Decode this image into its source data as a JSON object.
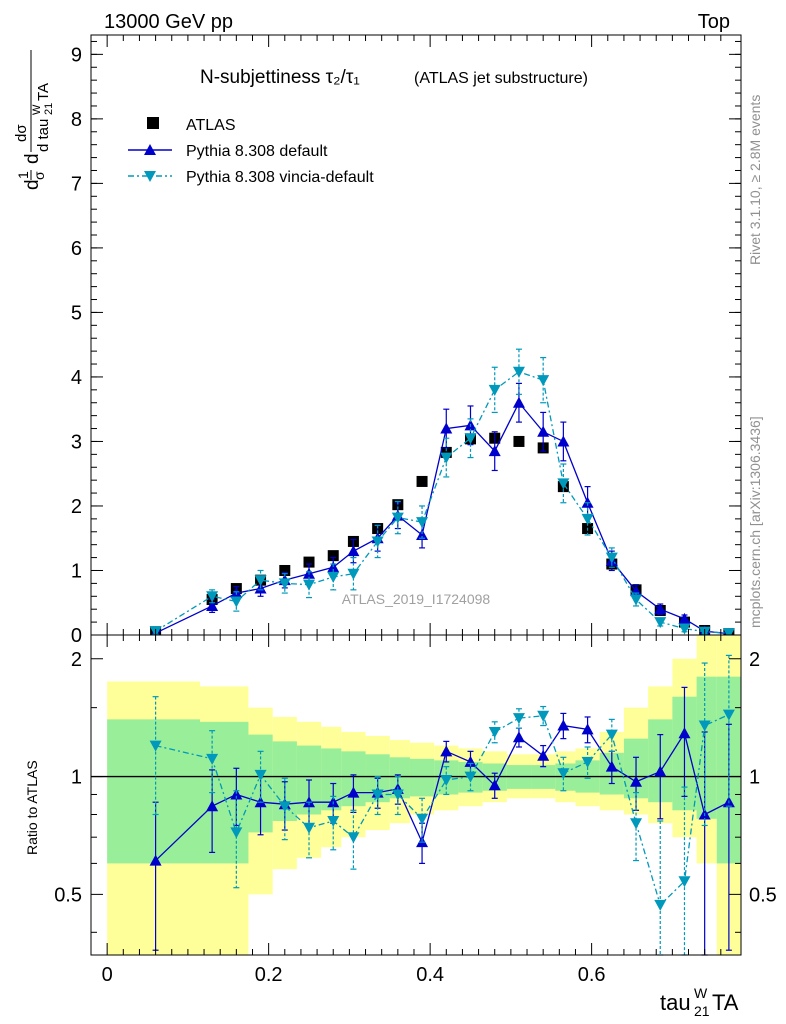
{
  "header": {
    "beam": "13000 GeV pp",
    "process": "Top",
    "analysis_id": "ATLAS_2019_I1724098"
  },
  "side_labels": {
    "rivet": "Rivet 3.1.10, ≥ 2.8M events",
    "mcplots": "mcplots.cern.ch [arXiv:1306.3436]"
  },
  "chart_data": [
    {
      "type": "scatter",
      "title_main": "N-subjettiness τ₂/τ₁",
      "title_sub": "(ATLAS jet substructure)",
      "xlabel": "tau21WTA",
      "ylabel": "(1/σ) dσ / d tau21WTA",
      "xlim": [
        -0.02,
        0.785
      ],
      "ylim": [
        0,
        9.3
      ],
      "yticks": [
        0,
        1,
        2,
        3,
        4,
        5,
        6,
        7,
        8,
        9
      ],
      "legend_position": "top-left",
      "series": [
        {
          "name": "ATLAS",
          "color": "#000000",
          "marker": "square",
          "x": [
            0.06,
            0.13,
            0.16,
            0.19,
            0.22,
            0.25,
            0.28,
            0.305,
            0.335,
            0.36,
            0.39,
            0.42,
            0.45,
            0.48,
            0.51,
            0.54,
            0.565,
            0.595,
            0.625,
            0.655,
            0.685,
            0.715,
            0.74,
            0.77
          ],
          "y": [
            0.05,
            0.55,
            0.72,
            0.85,
            1.0,
            1.13,
            1.23,
            1.45,
            1.65,
            2.02,
            2.38,
            2.83,
            3.04,
            3.05,
            3.0,
            2.9,
            2.3,
            1.65,
            1.1,
            0.7,
            0.38,
            0.2,
            0.07,
            0.02
          ]
        },
        {
          "name": "Pythia 8.308 default",
          "color": "#0000cc",
          "marker": "triangle-up",
          "x": [
            0.06,
            0.13,
            0.16,
            0.19,
            0.22,
            0.25,
            0.28,
            0.305,
            0.335,
            0.36,
            0.39,
            0.42,
            0.45,
            0.48,
            0.51,
            0.54,
            0.565,
            0.595,
            0.625,
            0.655,
            0.685,
            0.715,
            0.74,
            0.77
          ],
          "y": [
            0.03,
            0.45,
            0.65,
            0.72,
            0.85,
            0.95,
            1.05,
            1.3,
            1.5,
            1.85,
            1.55,
            3.2,
            3.25,
            2.85,
            3.6,
            3.15,
            3.0,
            2.05,
            1.15,
            0.68,
            0.4,
            0.25,
            0.06,
            0.02
          ],
          "err": [
            0.03,
            0.1,
            0.1,
            0.12,
            0.12,
            0.15,
            0.15,
            0.18,
            0.2,
            0.2,
            0.2,
            0.3,
            0.3,
            0.3,
            0.3,
            0.3,
            0.3,
            0.25,
            0.15,
            0.1,
            0.08,
            0.06,
            0.03,
            0.02
          ]
        },
        {
          "name": "Pythia 8.308 vincia-default",
          "color": "#0099bb",
          "marker": "triangle-down",
          "x": [
            0.06,
            0.13,
            0.16,
            0.19,
            0.22,
            0.25,
            0.28,
            0.305,
            0.335,
            0.36,
            0.39,
            0.42,
            0.45,
            0.48,
            0.51,
            0.54,
            0.565,
            0.595,
            0.625,
            0.655,
            0.685,
            0.715,
            0.74,
            0.77
          ],
          "y": [
            0.06,
            0.6,
            0.52,
            0.85,
            0.8,
            0.78,
            0.9,
            0.95,
            1.45,
            1.82,
            1.75,
            2.75,
            3.05,
            3.8,
            4.08,
            3.95,
            2.35,
            1.8,
            1.2,
            0.55,
            0.2,
            0.1,
            0.05,
            0.03
          ],
          "err": [
            0.05,
            0.1,
            0.15,
            0.15,
            0.15,
            0.2,
            0.2,
            0.25,
            0.25,
            0.25,
            0.25,
            0.3,
            0.3,
            0.35,
            0.35,
            0.35,
            0.3,
            0.25,
            0.15,
            0.1,
            0.06,
            0.05,
            0.03,
            0.03
          ]
        }
      ]
    },
    {
      "type": "line",
      "ylabel": "Ratio to ATLAS",
      "xlabel": "tau21WTA",
      "xlim": [
        -0.02,
        0.785
      ],
      "ylim": [
        0.35,
        2.3
      ],
      "yticks": [
        0.5,
        1,
        2
      ],
      "xticks": [
        0,
        0.2,
        0.4,
        0.6
      ],
      "reference_line": 1,
      "bands": {
        "bin_edges": [
          0.0,
          0.115,
          0.175,
          0.205,
          0.235,
          0.265,
          0.29,
          0.32,
          0.35,
          0.375,
          0.405,
          0.435,
          0.465,
          0.495,
          0.525,
          0.555,
          0.58,
          0.61,
          0.64,
          0.67,
          0.7,
          0.73,
          0.755,
          0.785
        ],
        "yellow_low": [
          0.3,
          0.3,
          0.5,
          0.58,
          0.62,
          0.66,
          0.7,
          0.73,
          0.76,
          0.8,
          0.82,
          0.84,
          0.86,
          0.88,
          0.88,
          0.86,
          0.84,
          0.82,
          0.8,
          0.76,
          0.7,
          0.6,
          0.3
        ],
        "yellow_high": [
          1.75,
          1.7,
          1.5,
          1.42,
          1.38,
          1.34,
          1.3,
          1.27,
          1.24,
          1.22,
          1.2,
          1.18,
          1.16,
          1.14,
          1.14,
          1.16,
          1.18,
          1.3,
          1.5,
          1.7,
          2.0,
          2.3,
          2.3
        ],
        "green_low": [
          0.6,
          0.6,
          0.72,
          0.77,
          0.8,
          0.82,
          0.84,
          0.86,
          0.88,
          0.89,
          0.9,
          0.91,
          0.92,
          0.93,
          0.93,
          0.92,
          0.91,
          0.9,
          0.88,
          0.86,
          0.82,
          0.78,
          0.6
        ],
        "green_high": [
          1.4,
          1.38,
          1.28,
          1.23,
          1.2,
          1.18,
          1.16,
          1.14,
          1.12,
          1.11,
          1.1,
          1.09,
          1.08,
          1.07,
          1.07,
          1.08,
          1.1,
          1.15,
          1.25,
          1.4,
          1.6,
          1.8,
          1.8
        ]
      },
      "series": [
        {
          "name": "Pythia 8.308 default",
          "color": "#0000cc",
          "x": [
            0.06,
            0.13,
            0.16,
            0.19,
            0.22,
            0.25,
            0.28,
            0.305,
            0.335,
            0.36,
            0.39,
            0.42,
            0.45,
            0.48,
            0.51,
            0.54,
            0.565,
            0.595,
            0.625,
            0.655,
            0.685,
            0.715,
            0.74,
            0.77
          ],
          "y": [
            0.61,
            0.84,
            0.9,
            0.86,
            0.85,
            0.86,
            0.86,
            0.91,
            0.91,
            0.93,
            0.68,
            1.16,
            1.09,
            0.95,
            1.26,
            1.13,
            1.35,
            1.32,
            1.06,
            0.97,
            1.03,
            1.29,
            0.8,
            0.86
          ],
          "err": [
            0.25,
            0.2,
            0.15,
            0.15,
            0.12,
            0.12,
            0.1,
            0.1,
            0.08,
            0.08,
            0.08,
            0.07,
            0.07,
            0.07,
            0.07,
            0.07,
            0.1,
            0.1,
            0.1,
            0.15,
            0.25,
            0.4,
            0.5,
            0.5
          ]
        },
        {
          "name": "Pythia 8.308 vincia-default",
          "color": "#0099bb",
          "x": [
            0.06,
            0.13,
            0.16,
            0.19,
            0.22,
            0.25,
            0.28,
            0.305,
            0.335,
            0.36,
            0.39,
            0.42,
            0.45,
            0.48,
            0.51,
            0.54,
            0.565,
            0.595,
            0.625,
            0.655,
            0.685,
            0.715,
            0.74,
            0.77
          ],
          "y": [
            1.2,
            1.11,
            0.72,
            1.01,
            0.84,
            0.74,
            0.77,
            0.7,
            0.9,
            0.9,
            0.78,
            0.98,
            1.0,
            1.3,
            1.41,
            1.43,
            1.02,
            1.09,
            1.28,
            0.76,
            0.47,
            0.54,
            1.35,
            1.44
          ],
          "err": [
            0.4,
            0.2,
            0.2,
            0.15,
            0.15,
            0.12,
            0.12,
            0.12,
            0.1,
            0.1,
            0.1,
            0.08,
            0.08,
            0.08,
            0.08,
            0.08,
            0.1,
            0.1,
            0.12,
            0.15,
            0.3,
            0.4,
            0.6,
            0.6
          ]
        }
      ]
    }
  ]
}
